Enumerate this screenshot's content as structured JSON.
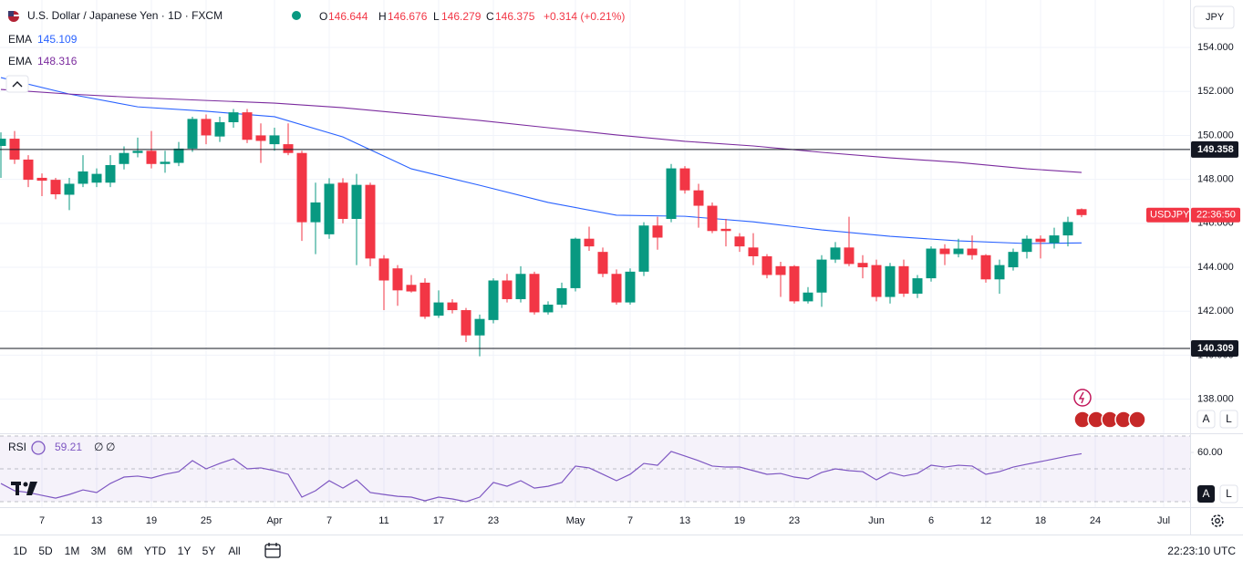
{
  "header": {
    "title": "U.S. Dollar / Japanese Yen · 1D · FXCM",
    "ohlc_labels": [
      "O",
      "H",
      "L",
      "C"
    ],
    "change": "+0.314 (+0.21%)"
  },
  "pane_buttons": [
    "A",
    "L"
  ],
  "toolbar": {
    "ranges": [
      "1D",
      "5D",
      "1M",
      "3M",
      "6M",
      "YTD",
      "1Y",
      "5Y",
      "All"
    ],
    "time": "22:23:10 UTC"
  },
  "chart_data": {
    "type": "candlestick",
    "symbol": "USDJPY",
    "currency": "JPY",
    "countdown": "22:36:50",
    "colors": {
      "up": "#089981",
      "down": "#f23645"
    },
    "grid": true,
    "x": [
      "03-04",
      "03-05",
      "03-06",
      "03-07",
      "03-10",
      "03-11",
      "03-12",
      "03-13",
      "03-14",
      "03-17",
      "03-18",
      "03-19",
      "03-20",
      "03-21",
      "03-24",
      "03-25",
      "03-26",
      "03-27",
      "03-28",
      "03-31",
      "04-01",
      "04-02",
      "04-03",
      "04-04",
      "04-07",
      "04-08",
      "04-09",
      "04-10",
      "04-11",
      "04-14",
      "04-15",
      "04-16",
      "04-17",
      "04-18",
      "04-21",
      "04-22",
      "04-23",
      "04-24",
      "04-25",
      "04-28",
      "04-29",
      "04-30",
      "05-01",
      "05-02",
      "05-05",
      "05-06",
      "05-07",
      "05-08",
      "05-09",
      "05-12",
      "05-13",
      "05-14",
      "05-15",
      "05-16",
      "05-19",
      "05-20",
      "05-21",
      "05-22",
      "05-23",
      "05-26",
      "05-27",
      "05-28",
      "05-29",
      "05-30",
      "06-02",
      "06-03",
      "06-04",
      "06-05",
      "06-06",
      "06-09",
      "06-10",
      "06-11",
      "06-12",
      "06-13",
      "06-16",
      "06-17",
      "06-18",
      "06-19",
      "06-20",
      "06-23"
    ],
    "open": [
      149.52,
      149.85,
      148.9,
      148.07,
      147.98,
      147.3,
      147.8,
      147.85,
      147.85,
      148.7,
      149.2,
      149.3,
      148.7,
      148.75,
      149.4,
      150.75,
      149.95,
      150.6,
      151.05,
      150.0,
      149.6,
      149.6,
      149.2,
      146.05,
      145.5,
      147.85,
      146.2,
      147.75,
      144.4,
      143.95,
      143.2,
      143.3,
      141.8,
      142.4,
      142.05,
      140.9,
      141.6,
      143.4,
      142.55,
      143.7,
      141.95,
      142.3,
      143.05,
      145.3,
      144.7,
      143.7,
      142.4,
      143.8,
      145.9,
      146.2,
      148.5,
      147.5,
      146.8,
      145.75,
      145.4,
      144.9,
      144.5,
      144.05,
      144.05,
      142.45,
      142.85,
      144.35,
      144.9,
      144.2,
      144.1,
      142.65,
      144.05,
      142.8,
      143.5,
      144.85,
      144.6,
      144.85,
      144.55,
      143.45,
      144.0,
      144.7,
      145.3,
      145.1,
      145.45,
      146.644
    ],
    "high": [
      150.14,
      150.2,
      149.1,
      148.27,
      148.07,
      148.07,
      149.1,
      148.5,
      149.1,
      149.5,
      149.9,
      150.2,
      149.3,
      149.7,
      150.85,
      150.95,
      150.85,
      151.2,
      151.2,
      150.55,
      150.35,
      150.55,
      149.3,
      147.85,
      148.05,
      148.05,
      148.25,
      147.85,
      144.55,
      144.1,
      143.65,
      143.5,
      142.95,
      142.55,
      142.15,
      141.85,
      143.5,
      143.7,
      144.05,
      143.8,
      142.45,
      143.3,
      145.35,
      145.85,
      144.9,
      143.9,
      143.95,
      146.05,
      146.3,
      148.7,
      148.6,
      147.8,
      146.95,
      146.2,
      145.55,
      145.55,
      144.6,
      144.25,
      144.1,
      143.1,
      144.55,
      145.15,
      146.3,
      144.55,
      144.35,
      144.2,
      144.35,
      143.65,
      144.95,
      145.05,
      145.3,
      145.45,
      144.6,
      144.35,
      144.85,
      145.45,
      145.45,
      145.8,
      146.3,
      146.676
    ],
    "low": [
      148.07,
      148.7,
      147.65,
      147.24,
      147.1,
      146.6,
      147.65,
      147.65,
      147.65,
      148.45,
      149.0,
      148.5,
      148.3,
      148.6,
      149.25,
      149.6,
      149.7,
      150.35,
      149.65,
      148.75,
      149.3,
      149.1,
      145.2,
      144.6,
      145.3,
      146.0,
      144.1,
      144.05,
      142.05,
      142.25,
      142.85,
      141.65,
      141.7,
      141.9,
      140.6,
      139.95,
      141.45,
      142.4,
      142.4,
      141.85,
      141.85,
      142.15,
      142.9,
      144.75,
      143.55,
      142.3,
      142.3,
      143.6,
      144.8,
      146.05,
      147.35,
      145.8,
      145.55,
      144.95,
      144.7,
      144.1,
      143.5,
      142.65,
      142.35,
      142.35,
      142.2,
      144.2,
      144.05,
      143.5,
      142.45,
      142.35,
      142.65,
      142.6,
      143.35,
      144.1,
      144.45,
      144.35,
      143.3,
      142.8,
      143.85,
      144.4,
      144.4,
      144.85,
      144.95,
      146.279
    ],
    "close": [
      149.85,
      148.9,
      147.98,
      147.94,
      147.32,
      147.8,
      148.36,
      148.25,
      148.65,
      149.2,
      149.3,
      148.7,
      148.8,
      149.4,
      150.75,
      150.0,
      150.6,
      151.05,
      149.8,
      149.75,
      150.0,
      149.2,
      146.05,
      146.95,
      147.8,
      146.2,
      147.75,
      144.4,
      143.4,
      142.95,
      142.9,
      141.75,
      142.4,
      142.05,
      140.9,
      141.65,
      143.4,
      142.55,
      143.7,
      141.95,
      142.3,
      143.05,
      145.3,
      144.95,
      143.7,
      142.4,
      143.8,
      145.9,
      145.35,
      148.5,
      147.5,
      146.8,
      145.65,
      145.65,
      144.95,
      144.5,
      143.65,
      143.65,
      142.45,
      142.85,
      144.35,
      144.9,
      144.15,
      144.0,
      142.65,
      144.05,
      142.8,
      143.5,
      144.85,
      144.6,
      144.85,
      144.55,
      143.45,
      144.1,
      144.7,
      145.3,
      145.15,
      145.45,
      146.06,
      146.375
    ],
    "ema": [
      {
        "name": "EMA",
        "color": "#2962ff",
        "x": [
          "03-04",
          "03-11",
          "03-18",
          "03-25",
          "04-01",
          "04-08",
          "04-15",
          "04-22",
          "04-29",
          "05-06",
          "05-13",
          "05-20",
          "05-27",
          "06-03",
          "06-10",
          "06-17",
          "06-23"
        ],
        "values": [
          152.63,
          151.88,
          151.3,
          151.1,
          150.85,
          149.93,
          148.48,
          147.73,
          146.95,
          146.37,
          146.32,
          146.07,
          145.7,
          145.41,
          145.2,
          145.08,
          145.109
        ]
      },
      {
        "name": "EMA",
        "color": "#7b2b9e",
        "x": [
          "03-04",
          "03-11",
          "03-18",
          "03-25",
          "04-01",
          "04-08",
          "04-15",
          "04-22",
          "04-29",
          "05-06",
          "05-13",
          "05-20",
          "05-27",
          "06-03",
          "06-10",
          "06-17",
          "06-23"
        ],
        "values": [
          152.09,
          151.88,
          151.72,
          151.59,
          151.47,
          151.26,
          150.97,
          150.68,
          150.35,
          150.02,
          149.73,
          149.52,
          149.23,
          148.98,
          148.77,
          148.48,
          148.316
        ]
      }
    ],
    "hlines": [
      149.358,
      140.309
    ],
    "ylim": [
      136.49,
      156.16
    ],
    "yticks": [
      {
        "value": 138,
        "label": "138.000"
      },
      {
        "value": 140,
        "label": "140.000"
      },
      {
        "value": 142,
        "label": "142.000"
      },
      {
        "value": 144,
        "label": "144.000"
      },
      {
        "value": 146,
        "label": "146.000"
      },
      {
        "value": 148,
        "label": "148.000"
      },
      {
        "value": 150,
        "label": "150.000"
      },
      {
        "value": 152,
        "label": "152.000"
      },
      {
        "value": 154,
        "label": "154.000"
      }
    ],
    "xticks": [
      {
        "value": "03-07",
        "label": "7"
      },
      {
        "value": "03-13",
        "label": "13"
      },
      {
        "value": "03-19",
        "label": "19"
      },
      {
        "value": "03-25",
        "label": "25"
      },
      {
        "value": "04-01",
        "label": "Apr"
      },
      {
        "value": "04-07",
        "label": "7"
      },
      {
        "value": "04-11",
        "label": "11"
      },
      {
        "value": "04-17",
        "label": "17"
      },
      {
        "value": "04-23",
        "label": "23"
      },
      {
        "value": "05-01",
        "label": "May"
      },
      {
        "value": "05-07",
        "label": "7"
      },
      {
        "value": "05-13",
        "label": "13"
      },
      {
        "value": "05-19",
        "label": "19"
      },
      {
        "value": "05-23",
        "label": "23"
      },
      {
        "value": "06-02",
        "label": "Jun"
      },
      {
        "value": "06-06",
        "label": "6"
      },
      {
        "value": "06-12",
        "label": "12"
      },
      {
        "value": "06-18",
        "label": "18"
      },
      {
        "value": "06-24",
        "label": "24"
      },
      {
        "value": "07-01",
        "label": "Jul"
      }
    ],
    "rsi": {
      "name": "RSI",
      "color": "#7e57c2",
      "extras": [
        "∅",
        "∅"
      ],
      "values": [
        41.1,
        36.7,
        35.6,
        33.9,
        32.2,
        34.4,
        37.2,
        35.6,
        41.1,
        45.0,
        45.6,
        44.4,
        46.7,
        48.3,
        55.0,
        50.0,
        53.3,
        56.1,
        50.0,
        50.6,
        48.9,
        46.7,
        32.8,
        36.7,
        42.8,
        38.3,
        43.3,
        35.6,
        34.4,
        33.3,
        32.8,
        30.6,
        32.8,
        31.7,
        30.0,
        32.8,
        41.7,
        39.4,
        42.8,
        38.3,
        39.4,
        41.7,
        51.7,
        50.6,
        46.7,
        42.8,
        46.7,
        53.3,
        52.2,
        60.6,
        57.8,
        55.0,
        51.7,
        51.1,
        51.1,
        48.9,
        46.7,
        47.2,
        45.0,
        43.9,
        47.8,
        50.0,
        48.9,
        48.3,
        43.3,
        47.8,
        45.6,
        47.2,
        52.2,
        51.1,
        52.2,
        51.7,
        46.7,
        48.3,
        51.1,
        52.8,
        54.4,
        56.1,
        57.8,
        59.21
      ],
      "levels": [
        30,
        50,
        70
      ],
      "ylim": [
        26.7,
        71.1
      ],
      "yticks": [
        {
          "value": 60,
          "label": "60.00"
        }
      ]
    }
  }
}
